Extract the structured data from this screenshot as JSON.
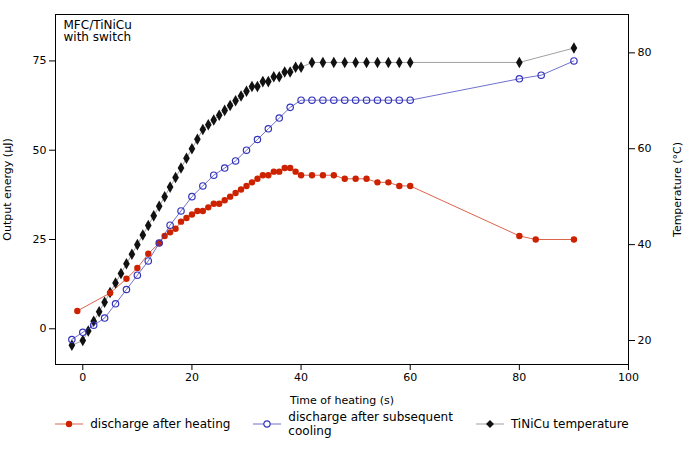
{
  "chart_data": {
    "type": "line",
    "title": "MFC/TiNiCu\nwith switch",
    "xlabel": "Time of heating (s)",
    "ylabel": "Output energy (μJ)",
    "y2label": "Temperature (°C)",
    "xlim": [
      -5,
      100
    ],
    "ylim": [
      -10,
      88
    ],
    "y2lim": [
      15,
      88
    ],
    "xticks": [
      0,
      20,
      40,
      60,
      80,
      100
    ],
    "yticks": [
      0,
      25,
      50,
      75
    ],
    "y2ticks": [
      20,
      40,
      60,
      80
    ],
    "grid": false,
    "legend": "bottom",
    "series": [
      {
        "name": "discharge after heating",
        "color": "#cc2200",
        "marker": "circle",
        "x": [
          -1,
          5,
          8,
          10,
          12,
          14,
          15,
          16,
          17,
          18,
          19,
          20,
          21,
          22,
          23,
          24,
          25,
          26,
          27,
          28,
          29,
          30,
          31,
          32,
          33,
          34,
          35,
          36,
          37,
          38,
          39,
          40,
          42,
          44,
          46,
          48,
          50,
          52,
          54,
          56,
          58,
          60,
          80,
          83,
          90
        ],
        "values": [
          5,
          10,
          14,
          17,
          21,
          24,
          26,
          27,
          28,
          30,
          31,
          32,
          33,
          33,
          34,
          35,
          35,
          36,
          37,
          38,
          39,
          40,
          41,
          42,
          43,
          43,
          44,
          44,
          45,
          45,
          44,
          43,
          43,
          43,
          43,
          42,
          42,
          42,
          41,
          41,
          40,
          40,
          26,
          25,
          25
        ]
      },
      {
        "name": "discharge after subsequent\ncooling",
        "color": "#3333bb",
        "marker": "open circle",
        "x": [
          -2,
          0,
          2,
          4,
          6,
          8,
          10,
          12,
          14,
          16,
          18,
          20,
          22,
          24,
          26,
          28,
          30,
          32,
          34,
          36,
          38,
          40,
          42,
          44,
          46,
          48,
          50,
          52,
          54,
          56,
          58,
          60,
          80,
          84,
          90
        ],
        "values": [
          -3,
          -1,
          1,
          3,
          7,
          11,
          15,
          19,
          24,
          29,
          33,
          37,
          40,
          43,
          45,
          47,
          50,
          53,
          56,
          59,
          62,
          64,
          64,
          64,
          64,
          64,
          64,
          64,
          64,
          64,
          64,
          64,
          70,
          71,
          75
        ]
      },
      {
        "name": "TiNiCu temperature",
        "color": "#111111",
        "marker": "diamond",
        "axis": "y2",
        "x": [
          -2,
          0,
          1,
          2,
          3,
          4,
          5,
          6,
          7,
          8,
          9,
          10,
          11,
          12,
          13,
          14,
          15,
          16,
          17,
          18,
          19,
          20,
          21,
          22,
          23,
          24,
          25,
          26,
          27,
          28,
          29,
          30,
          31,
          32,
          33,
          34,
          35,
          36,
          37,
          38,
          39,
          40,
          42,
          44,
          46,
          48,
          50,
          52,
          54,
          56,
          58,
          60,
          80,
          90
        ],
        "values": [
          19,
          20,
          22,
          24,
          26,
          28,
          30,
          32,
          34,
          36,
          38,
          40,
          42,
          44,
          46,
          48,
          50,
          52,
          54,
          56,
          58,
          60,
          62,
          64,
          65,
          66,
          67,
          68,
          69,
          70,
          71,
          72,
          73,
          73,
          74,
          74,
          75,
          75,
          76,
          76,
          77,
          77,
          78,
          78,
          78,
          78,
          78,
          78,
          78,
          78,
          78,
          78,
          78,
          81
        ]
      }
    ]
  }
}
